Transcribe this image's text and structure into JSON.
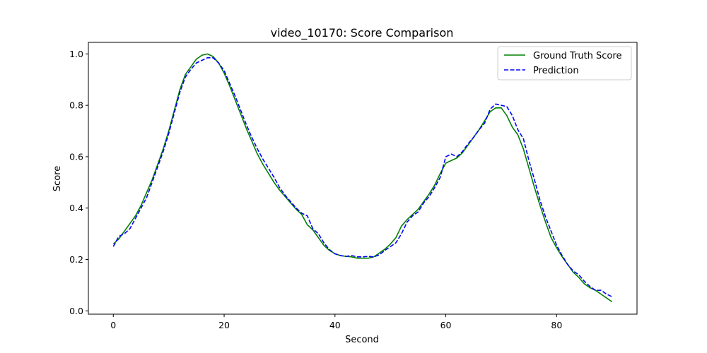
{
  "chart_data": {
    "type": "line",
    "title": "video_10170: Score Comparison",
    "xlabel": "Second",
    "ylabel": "Score",
    "xlim": [
      -4.5,
      94.5
    ],
    "ylim": [
      -0.013,
      1.045
    ],
    "xticks": [
      0,
      20,
      40,
      60,
      80
    ],
    "yticks": [
      0.0,
      0.2,
      0.4,
      0.6,
      0.8,
      1.0
    ],
    "xtick_labels": [
      "0",
      "20",
      "40",
      "60",
      "80"
    ],
    "ytick_labels": [
      "0.0",
      "0.2",
      "0.4",
      "0.6",
      "0.8",
      "1.0"
    ],
    "grid": false,
    "legend_position": "top-right",
    "x": [
      0,
      1,
      2,
      3,
      4,
      5,
      6,
      7,
      8,
      9,
      10,
      11,
      12,
      13,
      14,
      15,
      16,
      17,
      18,
      19,
      20,
      21,
      22,
      23,
      24,
      25,
      26,
      27,
      28,
      29,
      30,
      31,
      32,
      33,
      34,
      35,
      36,
      37,
      38,
      39,
      40,
      41,
      42,
      43,
      44,
      45,
      46,
      47,
      48,
      49,
      50,
      51,
      52,
      53,
      54,
      55,
      56,
      57,
      58,
      59,
      60,
      61,
      62,
      63,
      64,
      65,
      66,
      67,
      68,
      69,
      70,
      71,
      72,
      73,
      74,
      75,
      76,
      77,
      78,
      79,
      80,
      81,
      82,
      83,
      84,
      85,
      86,
      87,
      88,
      89,
      90
    ],
    "series": [
      {
        "name": "Ground Truth Score",
        "color": "#008000",
        "dash": "solid",
        "values": [
          0.26,
          0.28,
          0.31,
          0.34,
          0.37,
          0.41,
          0.46,
          0.51,
          0.57,
          0.63,
          0.7,
          0.78,
          0.86,
          0.92,
          0.95,
          0.98,
          0.995,
          1.0,
          0.99,
          0.965,
          0.925,
          0.875,
          0.82,
          0.765,
          0.71,
          0.66,
          0.61,
          0.57,
          0.535,
          0.5,
          0.47,
          0.445,
          0.42,
          0.395,
          0.375,
          0.335,
          0.315,
          0.285,
          0.255,
          0.235,
          0.222,
          0.215,
          0.212,
          0.21,
          0.205,
          0.205,
          0.205,
          0.21,
          0.225,
          0.24,
          0.26,
          0.285,
          0.33,
          0.355,
          0.375,
          0.395,
          0.425,
          0.455,
          0.49,
          0.535,
          0.575,
          0.585,
          0.595,
          0.615,
          0.645,
          0.675,
          0.705,
          0.74,
          0.775,
          0.79,
          0.79,
          0.76,
          0.715,
          0.685,
          0.63,
          0.555,
          0.48,
          0.41,
          0.345,
          0.285,
          0.245,
          0.21,
          0.18,
          0.15,
          0.13,
          0.105,
          0.09,
          0.08,
          0.065,
          0.05,
          0.035
        ]
      },
      {
        "name": "Prediction",
        "color": "#0000ff",
        "dash": "dashed",
        "values": [
          0.25,
          0.29,
          0.3,
          0.32,
          0.36,
          0.4,
          0.44,
          0.5,
          0.56,
          0.62,
          0.69,
          0.77,
          0.85,
          0.91,
          0.94,
          0.965,
          0.975,
          0.985,
          0.985,
          0.965,
          0.935,
          0.885,
          0.835,
          0.78,
          0.725,
          0.675,
          0.63,
          0.59,
          0.555,
          0.52,
          0.48,
          0.45,
          0.425,
          0.4,
          0.38,
          0.37,
          0.32,
          0.3,
          0.265,
          0.238,
          0.222,
          0.215,
          0.212,
          0.215,
          0.21,
          0.21,
          0.212,
          0.21,
          0.218,
          0.235,
          0.25,
          0.265,
          0.3,
          0.345,
          0.37,
          0.385,
          0.42,
          0.445,
          0.48,
          0.52,
          0.6,
          0.61,
          0.6,
          0.62,
          0.65,
          0.675,
          0.705,
          0.73,
          0.785,
          0.805,
          0.8,
          0.795,
          0.76,
          0.705,
          0.67,
          0.585,
          0.51,
          0.43,
          0.365,
          0.31,
          0.255,
          0.215,
          0.18,
          0.155,
          0.14,
          0.115,
          0.095,
          0.08,
          0.08,
          0.065,
          0.055
        ]
      }
    ]
  }
}
